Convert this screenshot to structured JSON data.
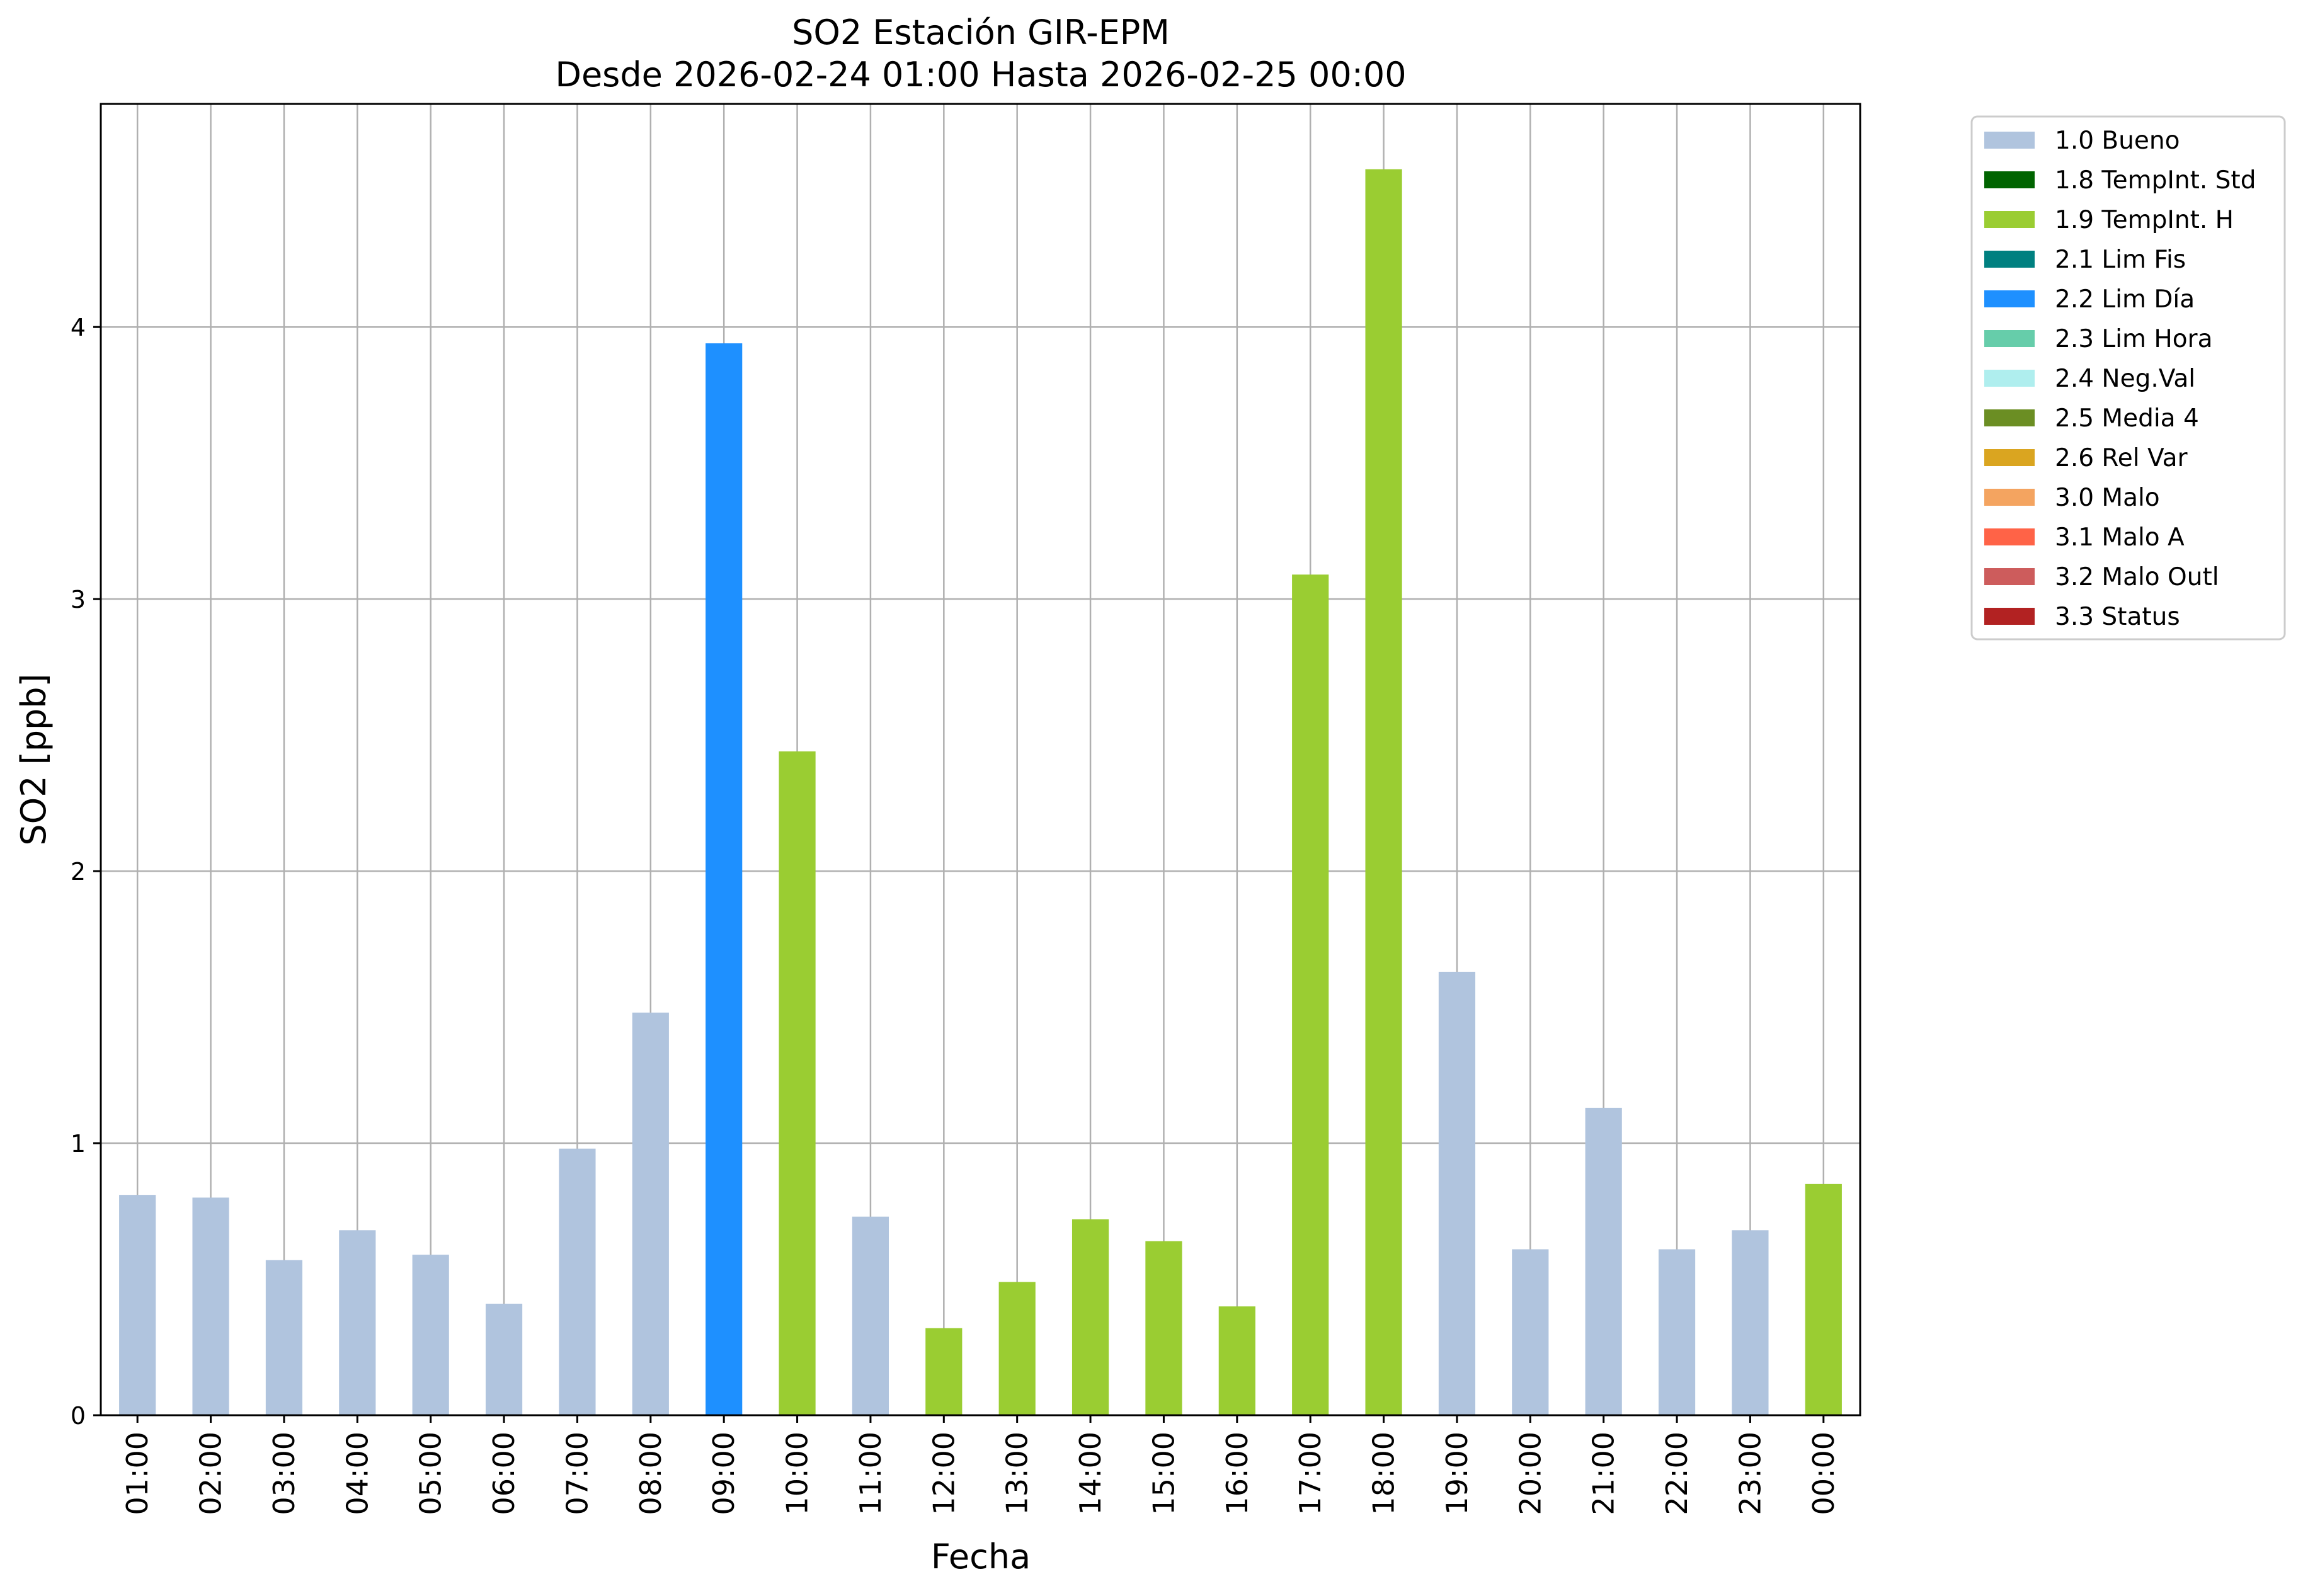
{
  "chart_data": {
    "type": "bar",
    "title": "SO2 Estación GIR-EPM",
    "subtitle": "Desde 2026-02-24 01:00 Hasta 2026-02-25 00:00",
    "xlabel": "Fecha",
    "ylabel": "SO2 [ppb]",
    "ylim": [
      0,
      4.82
    ],
    "yticks": [
      0,
      1,
      2,
      3,
      4
    ],
    "grid": true,
    "legend_position": "outside-top-right",
    "categories": [
      "01:00",
      "02:00",
      "03:00",
      "04:00",
      "05:00",
      "06:00",
      "07:00",
      "08:00",
      "09:00",
      "10:00",
      "11:00",
      "12:00",
      "13:00",
      "14:00",
      "15:00",
      "16:00",
      "17:00",
      "18:00",
      "19:00",
      "20:00",
      "21:00",
      "22:00",
      "23:00",
      "00:00"
    ],
    "values": [
      0.81,
      0.8,
      0.57,
      0.68,
      0.59,
      0.41,
      0.98,
      1.48,
      3.94,
      2.44,
      0.73,
      0.32,
      0.49,
      0.72,
      0.64,
      0.4,
      3.09,
      4.58,
      1.63,
      0.61,
      1.13,
      0.61,
      0.68,
      0.85
    ],
    "flags": [
      "1.0 Bueno",
      "1.0 Bueno",
      "1.0 Bueno",
      "1.0 Bueno",
      "1.0 Bueno",
      "1.0 Bueno",
      "1.0 Bueno",
      "1.0 Bueno",
      "2.2 Lim Día",
      "1.9 TempInt. H",
      "1.0 Bueno",
      "1.9 TempInt. H",
      "1.9 TempInt. H",
      "1.9 TempInt. H",
      "1.9 TempInt. H",
      "1.9 TempInt. H",
      "1.9 TempInt. H",
      "1.9 TempInt. H",
      "1.0 Bueno",
      "1.0 Bueno",
      "1.0 Bueno",
      "1.0 Bueno",
      "1.0 Bueno",
      "1.9 TempInt. H"
    ],
    "legend": [
      {
        "name": "1.0 Bueno",
        "color": "#b0c4de"
      },
      {
        "name": "1.8 TempInt. Std",
        "color": "#006400"
      },
      {
        "name": "1.9 TempInt. H",
        "color": "#9acd32"
      },
      {
        "name": "2.1 Lim Fis",
        "color": "#008080"
      },
      {
        "name": "2.2 Lim Día",
        "color": "#1e90ff"
      },
      {
        "name": "2.3 Lim Hora",
        "color": "#66cdaa"
      },
      {
        "name": "2.4 Neg.Val",
        "color": "#afeeee"
      },
      {
        "name": "2.5 Media 4",
        "color": "#6b8e23"
      },
      {
        "name": "2.6 Rel Var",
        "color": "#daa520"
      },
      {
        "name": "3.0 Malo",
        "color": "#f4a460"
      },
      {
        "name": "3.1 Malo A",
        "color": "#ff6347"
      },
      {
        "name": "3.2 Malo Outl",
        "color": "#cd5c5c"
      },
      {
        "name": "3.3 Status",
        "color": "#b22222"
      }
    ]
  }
}
